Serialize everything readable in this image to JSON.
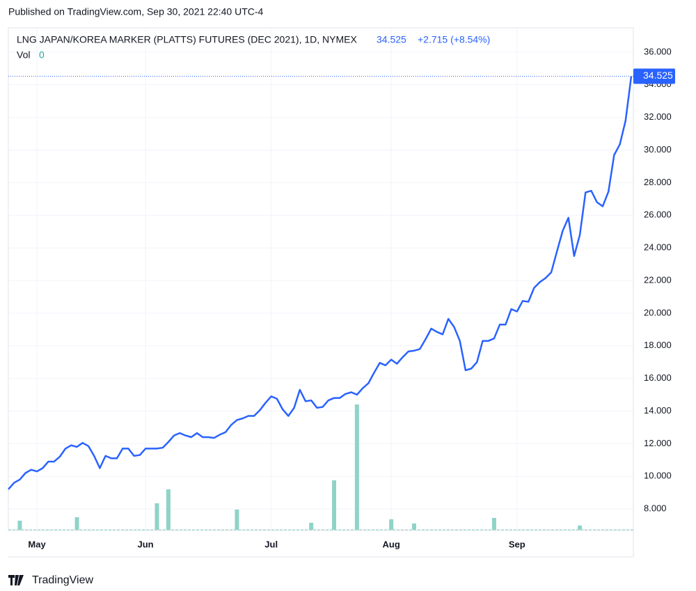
{
  "published": "Published on TradingView.com, Sep 30, 2021 22:40 UTC-4",
  "brand": "TradingView",
  "chart_data": {
    "type": "line",
    "title": "LNG JAPAN/KOREA MARKER (PLATTS) FUTURES (DEC 2021), 1D, NYMEX",
    "change": "+2.715 (+8.54%)",
    "categories": [
      null,
      null,
      null,
      null,
      null,
      "May",
      null,
      null,
      null,
      null,
      null,
      null,
      null,
      null,
      null,
      null,
      null,
      null,
      null,
      null,
      null,
      null,
      null,
      null,
      "Jun",
      null,
      null,
      null,
      null,
      null,
      null,
      null,
      null,
      null,
      null,
      null,
      null,
      null,
      null,
      null,
      null,
      null,
      null,
      null,
      null,
      null,
      "Jul",
      null,
      null,
      null,
      null,
      null,
      null,
      null,
      null,
      null,
      null,
      null,
      null,
      null,
      null,
      null,
      null,
      null,
      null,
      null,
      null,
      "Aug",
      null,
      null,
      null,
      null,
      null,
      null,
      null,
      null,
      null,
      null,
      null,
      null,
      null,
      null,
      null,
      null,
      null,
      null,
      null,
      null,
      null,
      "Sep",
      null,
      null,
      null,
      null,
      null,
      null,
      null,
      null,
      null,
      null,
      null,
      null,
      null,
      null,
      null,
      null,
      null,
      null,
      null,
      null
    ],
    "series": [
      {
        "name": "LNG JAPAN/KOREA MARKER (PLATTS) FUTURES (DEC 2021)",
        "color": "#2962ff",
        "values": [
          9.2,
          9.6,
          9.8,
          10.2,
          10.4,
          10.3,
          10.5,
          10.9,
          10.9,
          11.2,
          11.7,
          11.9,
          11.8,
          12.05,
          11.85,
          11.25,
          10.5,
          11.25,
          11.1,
          11.1,
          11.7,
          11.7,
          11.25,
          11.3,
          11.7,
          11.7,
          11.7,
          11.75,
          12.1,
          12.5,
          12.65,
          12.5,
          12.4,
          12.65,
          12.4,
          12.4,
          12.35,
          12.55,
          12.7,
          13.15,
          13.45,
          13.55,
          13.7,
          13.7,
          14.05,
          14.5,
          14.9,
          14.75,
          14.1,
          13.7,
          14.2,
          15.3,
          14.6,
          14.65,
          14.2,
          14.25,
          14.65,
          14.8,
          14.8,
          15.05,
          15.15,
          15.0,
          15.4,
          15.7,
          16.35,
          16.95,
          16.8,
          17.15,
          16.9,
          17.3,
          17.65,
          17.7,
          17.8,
          18.4,
          19.05,
          18.85,
          18.7,
          19.65,
          19.15,
          18.3,
          16.5,
          16.6,
          17.0,
          18.3,
          18.3,
          18.45,
          19.3,
          19.3,
          20.25,
          20.1,
          20.75,
          20.7,
          21.55,
          21.9,
          22.15,
          22.5,
          23.8,
          25.05,
          25.85,
          23.5,
          24.8,
          27.4,
          27.5,
          26.8,
          26.55,
          27.45,
          29.7,
          30.35,
          31.8,
          34.525
        ]
      }
    ],
    "volume": {
      "name": "Vol",
      "color": "#8fd3c8",
      "values": [
        0,
        0,
        13,
        0,
        0,
        0,
        0,
        0,
        0,
        0,
        0,
        0,
        18,
        0,
        0,
        0,
        0,
        0,
        0,
        0,
        0,
        0,
        0,
        0,
        0,
        0,
        38,
        0,
        58,
        0,
        0,
        0,
        0,
        0,
        0,
        0,
        0,
        0,
        0,
        0,
        29,
        0,
        0,
        0,
        0,
        0,
        0,
        0,
        0,
        0,
        0,
        0,
        0,
        10,
        0,
        0,
        0,
        71,
        0,
        0,
        0,
        180,
        0,
        0,
        0,
        0,
        0,
        15,
        0,
        0,
        0,
        9,
        0,
        0,
        0,
        0,
        0,
        0,
        0,
        0,
        0,
        0,
        0,
        0,
        0,
        17,
        0,
        0,
        0,
        0,
        0,
        0,
        0,
        0,
        0,
        0,
        0,
        0,
        0,
        0,
        6,
        0,
        0,
        0,
        0,
        0,
        0,
        0,
        0,
        0
      ]
    },
    "ylim": [
      6.68,
      37.49
    ],
    "yticks": [
      {
        "value": 8,
        "label": "8.000"
      },
      {
        "value": 10,
        "label": "10.000"
      },
      {
        "value": 12,
        "label": "12.000"
      },
      {
        "value": 14,
        "label": "14.000"
      },
      {
        "value": 16,
        "label": "16.000"
      },
      {
        "value": 18,
        "label": "18.000"
      },
      {
        "value": 20,
        "label": "20.000"
      },
      {
        "value": 22,
        "label": "22.000"
      },
      {
        "value": 24,
        "label": "24.000"
      },
      {
        "value": 26,
        "label": "26.000"
      },
      {
        "value": 28,
        "label": "28.000"
      },
      {
        "value": 30,
        "label": "30.000"
      },
      {
        "value": 32,
        "label": "32.000"
      },
      {
        "value": 34,
        "label": "34.000"
      },
      {
        "value": 36,
        "label": "36.000"
      }
    ],
    "grid": true
  }
}
